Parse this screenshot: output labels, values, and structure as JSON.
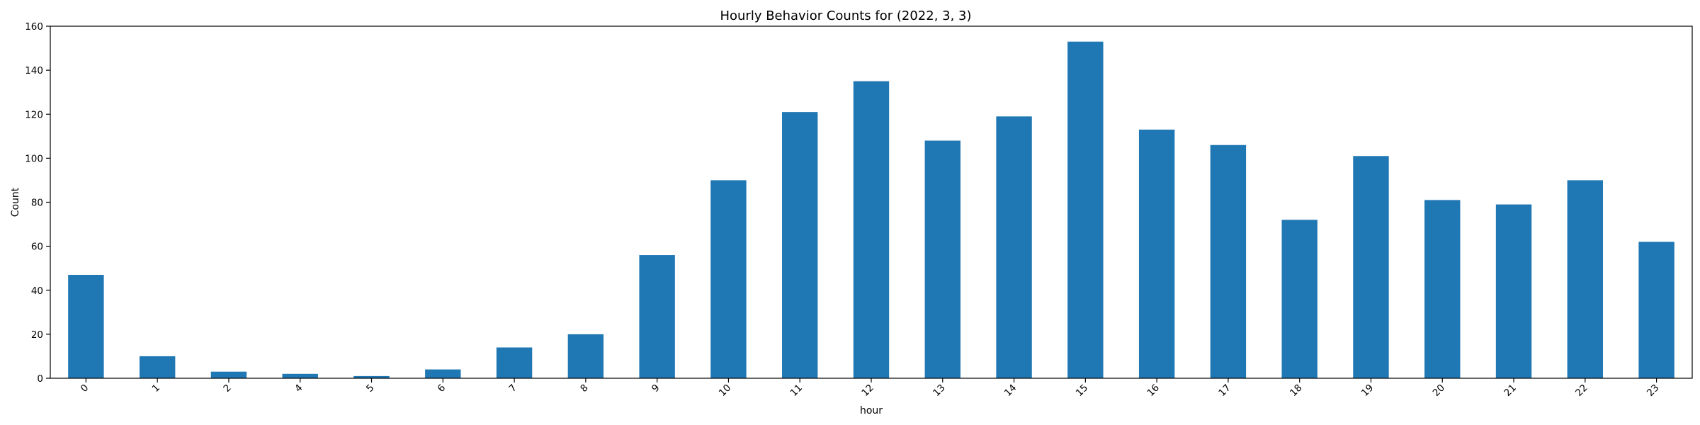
{
  "chart_data": {
    "type": "bar",
    "title": "Hourly Behavior Counts for (2022, 3, 3)",
    "xlabel": "hour",
    "ylabel": "Count",
    "categories": [
      "0",
      "1",
      "2",
      "4",
      "5",
      "6",
      "7",
      "8",
      "9",
      "10",
      "11",
      "12",
      "13",
      "14",
      "15",
      "16",
      "17",
      "18",
      "19",
      "20",
      "21",
      "22",
      "23"
    ],
    "values": [
      47,
      10,
      3,
      2,
      1,
      4,
      14,
      20,
      56,
      90,
      121,
      135,
      108,
      119,
      153,
      113,
      106,
      72,
      101,
      81,
      79,
      90,
      62
    ],
    "ylim": [
      0,
      160
    ],
    "yticks": [
      0,
      20,
      40,
      60,
      80,
      100,
      120,
      140,
      160
    ],
    "grid": false,
    "bar_color": "#1f77b4"
  }
}
